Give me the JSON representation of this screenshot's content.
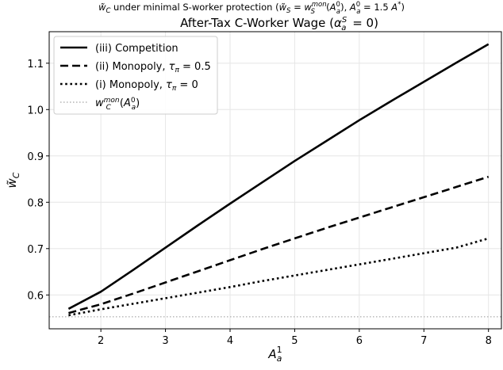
{
  "chart_data": {
    "type": "line",
    "suptitle": "w̃_C under minimal S-worker protection (w̃_S = w_S^mon(A_a^0), A_a^0 = 1.5 A*)",
    "title": "After-Tax C-Worker Wage (α_a^S = 0)",
    "xlabel": "A_a^1",
    "ylabel": "w̃_C",
    "xlim": [
      1.2,
      8.2
    ],
    "ylim": [
      0.527,
      1.168
    ],
    "xticks": [
      2,
      3,
      4,
      5,
      6,
      7,
      8
    ],
    "yticks": [
      0.6,
      0.7,
      0.8,
      0.9,
      1.0,
      1.1
    ],
    "xtick_labels": [
      "2",
      "3",
      "4",
      "5",
      "6",
      "7",
      "8"
    ],
    "ytick_labels": [
      "0.6",
      "0.7",
      "0.8",
      "0.9",
      "1.0",
      "1.1"
    ],
    "grid": true,
    "legend_position": "top-left",
    "x": [
      1.5,
      2.0,
      2.5,
      3.0,
      3.5,
      4.0,
      4.5,
      5.0,
      5.5,
      6.0,
      6.5,
      7.0,
      7.5,
      8.0
    ],
    "series": [
      {
        "name": "(iii) Competition",
        "style": "solid",
        "color": "#000000",
        "values": [
          0.57,
          0.607,
          0.654,
          0.702,
          0.75,
          0.797,
          0.843,
          0.889,
          0.933,
          0.977,
          1.019,
          1.06,
          1.101,
          1.141
        ]
      },
      {
        "name": "(ii) Monopoly, τ_π = 0.5",
        "style": "dashed",
        "color": "#000000",
        "values": [
          0.561,
          0.58,
          0.603,
          0.627,
          0.651,
          0.675,
          0.699,
          0.722,
          0.745,
          0.767,
          0.789,
          0.811,
          0.833,
          0.855
        ]
      },
      {
        "name": "(i) Monopoly, τ_π = 0",
        "style": "dotted",
        "color": "#000000",
        "values": [
          0.556,
          0.569,
          0.581,
          0.593,
          0.605,
          0.617,
          0.63,
          0.642,
          0.654,
          0.666,
          0.678,
          0.69,
          0.702,
          0.722
        ]
      },
      {
        "name": "w_C^mon(A_a^0)",
        "style": "dotted-gray",
        "color": "#b3b3b3",
        "values": [
          0.553,
          0.553,
          0.553,
          0.553,
          0.553,
          0.553,
          0.553,
          0.553,
          0.553,
          0.553,
          0.553,
          0.553,
          0.553,
          0.553
        ]
      }
    ]
  }
}
